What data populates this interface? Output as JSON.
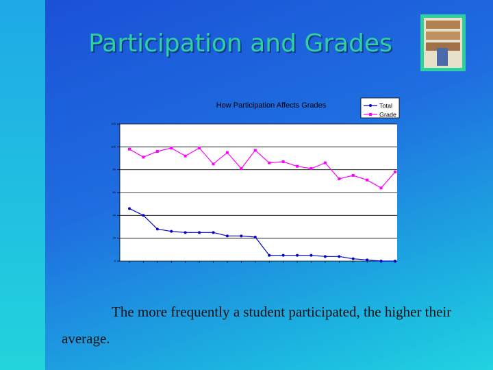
{
  "slide": {
    "title": "Participation and Grades",
    "caption": "The more frequently a student participated, the higher their average."
  },
  "chart_data": {
    "type": "line",
    "title": "How Participation Affects Grades",
    "categories": [
      null,
      null,
      null,
      null,
      null,
      null,
      null,
      null,
      null,
      null,
      null,
      null,
      null,
      null,
      null,
      null,
      null,
      null,
      null,
      null
    ],
    "series": [
      {
        "name": "Total",
        "color": "#0000cc",
        "values": [
          46,
          40,
          28,
          26,
          25,
          25,
          25,
          22,
          22,
          21,
          5,
          5,
          5,
          5,
          4,
          4,
          2,
          1,
          0,
          0
        ]
      },
      {
        "name": "Grade",
        "color": "#ff00ff",
        "values": [
          98,
          91,
          96,
          99,
          92,
          99,
          85,
          95,
          81,
          97,
          86,
          87,
          83,
          81,
          86,
          72,
          75,
          71,
          64,
          78
        ]
      }
    ],
    "ylim": [
      0,
      120
    ],
    "yticks": [
      0,
      20,
      40,
      60,
      80,
      100,
      120
    ],
    "grid": true,
    "legend": "top-right"
  }
}
